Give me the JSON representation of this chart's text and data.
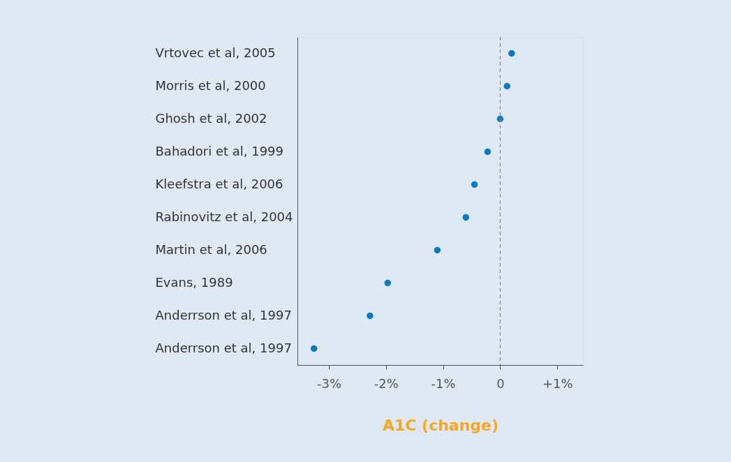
{
  "chart_data": {
    "type": "scatter",
    "orientation": "horizontal",
    "categories": [
      "Vrtovec et al, 2005",
      "Morris et al, 2000",
      "Ghosh et al, 2002",
      "Bahadori et al, 1999",
      "Kleefstra et al, 2006",
      "Rabinovitz et al, 2004",
      "Martin et al, 2006",
      "Evans, 1989",
      "Anderrson et al, 1997",
      "Anderrson et al, 1997"
    ],
    "values": [
      0.2,
      0.12,
      0.0,
      -0.22,
      -0.45,
      -0.6,
      -1.1,
      -1.97,
      -2.28,
      -3.26
    ],
    "color": "#0a7ac4",
    "marker": "circle",
    "xlabel": "A1C (change)",
    "xlim": [
      -3.55,
      1.45
    ],
    "xticks": [
      {
        "value": -3,
        "label": "-3%"
      },
      {
        "value": -2,
        "label": "-2%"
      },
      {
        "value": -1,
        "label": "-1%"
      },
      0,
      {
        "value": 1,
        "label": "+1%"
      }
    ],
    "ref_lines": [
      {
        "axis": "x",
        "value": 0,
        "label": null,
        "line_style": "dashed",
        "color": "#888888"
      }
    ],
    "grid": false
  }
}
